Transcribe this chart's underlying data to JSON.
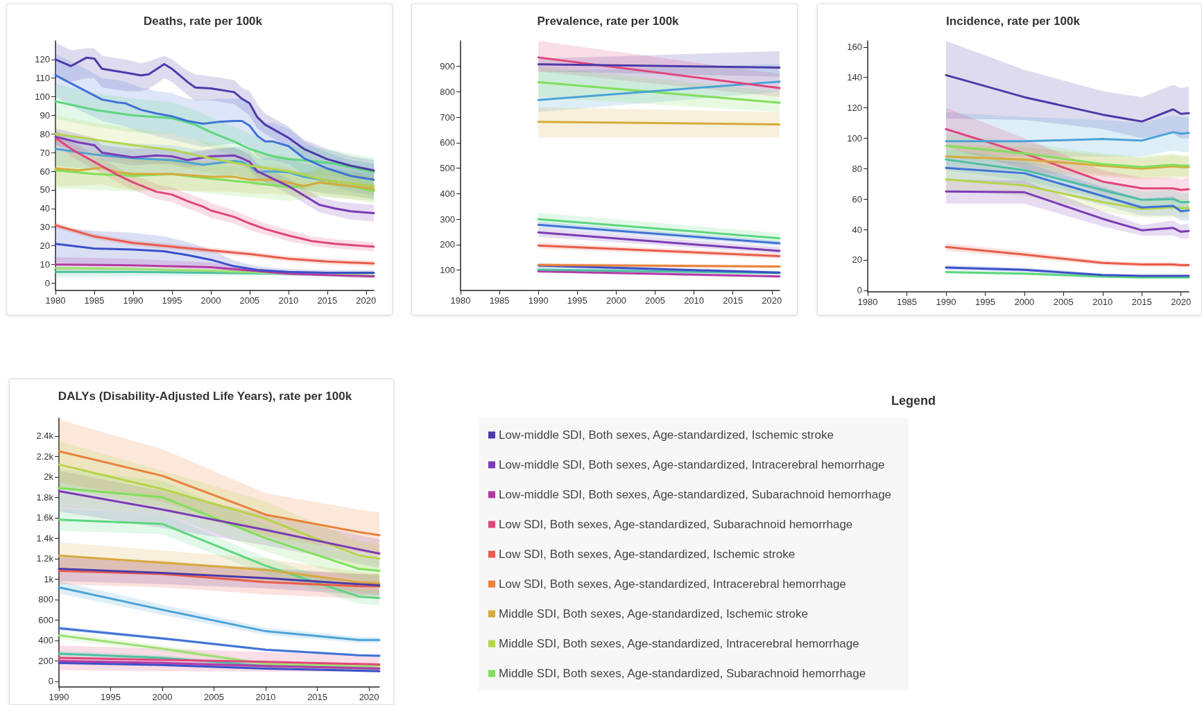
{
  "chart_data": [
    {
      "type": "line",
      "title": "Deaths, rate per 100k",
      "xlim": [
        1980,
        2021
      ],
      "xticks": [
        1980,
        1985,
        1990,
        1995,
        2000,
        2005,
        2010,
        2015,
        2020
      ],
      "ylim": [
        -4,
        130
      ],
      "yticks": [
        0,
        10,
        20,
        30,
        40,
        50,
        60,
        70,
        80,
        90,
        100,
        110,
        120
      ],
      "grid": false,
      "series": [
        {
          "color": "#4b3aa8",
          "x": [
            1980,
            1982,
            1984,
            1985,
            1986,
            1989,
            1991,
            1992,
            1994,
            1995,
            1997,
            1998,
            2000,
            2003,
            2004,
            2005,
            2006,
            2007,
            2010,
            2012,
            2015,
            2018,
            2021
          ],
          "values": [
            120,
            116.5,
            121,
            120.5,
            115,
            113,
            111.5,
            112,
            117.5,
            115,
            108,
            105,
            104.5,
            102.5,
            99,
            96.5,
            89,
            85,
            78,
            72,
            66.5,
            63,
            60.5
          ],
          "lower": [
            111,
            108,
            110,
            110,
            105,
            103,
            103,
            104,
            110,
            108,
            101,
            98,
            98,
            96,
            93,
            90,
            83,
            80,
            73,
            67,
            62,
            58,
            55
          ],
          "upper": [
            129,
            125,
            126,
            126,
            122,
            120,
            118,
            119,
            122,
            120,
            114,
            112,
            111,
            109,
            105,
            103,
            96,
            91,
            84,
            77,
            72,
            68,
            66
          ]
        },
        {
          "color": "#3f72d6",
          "x": [
            1980,
            1983,
            1986,
            1988,
            1989,
            1991,
            1993,
            1995,
            1997,
            1999,
            2001,
            2003,
            2004,
            2005,
            2006,
            2007,
            2008,
            2010,
            2012,
            2015,
            2018,
            2021
          ],
          "values": [
            111.5,
            105,
            98.5,
            97,
            96.5,
            93,
            91,
            89.5,
            87,
            85.5,
            86.5,
            87,
            87,
            84.5,
            79,
            76,
            76,
            73.5,
            67,
            61.5,
            57.5,
            55.5
          ],
          "lower": [
            100,
            93,
            87,
            85,
            84,
            81,
            79,
            77,
            75,
            73,
            74,
            75,
            75,
            73,
            68,
            66,
            66,
            64,
            58,
            53,
            49,
            47
          ],
          "upper": [
            123,
            117,
            110,
            109,
            108,
            105,
            103,
            102,
            99,
            98,
            99,
            99,
            99,
            96,
            90,
            86,
            86,
            83,
            76,
            70,
            66,
            64
          ]
        },
        {
          "color": "#5cd67e",
          "x": [
            1980,
            1985,
            1990,
            1995,
            1998,
            2000,
            2003,
            2005,
            2008,
            2010,
            2013,
            2016,
            2021
          ],
          "values": [
            97.5,
            93,
            90,
            88.5,
            85,
            81,
            76,
            72,
            68,
            66.5,
            65.5,
            64,
            59.5
          ],
          "lower": [
            88,
            84,
            81,
            80,
            77,
            73,
            68,
            64,
            61,
            59,
            58,
            57,
            52
          ],
          "upper": [
            107,
            102,
            99,
            97,
            93,
            89,
            84,
            80,
            75,
            74,
            73,
            71,
            67
          ]
        },
        {
          "color": "#b5d44a",
          "x": [
            1980,
            1985,
            1990,
            1995,
            2000,
            2005,
            2010,
            2015,
            2021
          ],
          "values": [
            80,
            77,
            74,
            71.5,
            67,
            63,
            60,
            55,
            52
          ],
          "lower": [
            70,
            68,
            65,
            63,
            59,
            55,
            52,
            48,
            45
          ],
          "upper": [
            90,
            86,
            83,
            80,
            75,
            71,
            68,
            62,
            59
          ]
        },
        {
          "color": "#7b3bb5",
          "x": [
            1980,
            1983,
            1985,
            1986,
            1990,
            1993,
            1995,
            1997,
            2000,
            2003,
            2004,
            2005,
            2006,
            2008,
            2010,
            2012,
            2014,
            2016,
            2018,
            2021
          ],
          "values": [
            78.5,
            75.5,
            74,
            70,
            67.5,
            68.5,
            68,
            66,
            68,
            68.5,
            67,
            65,
            60,
            56,
            52,
            47,
            42,
            40,
            38.5,
            37.5
          ],
          "lower": [
            74,
            71,
            70,
            66,
            63,
            64,
            64,
            62,
            64,
            64,
            63,
            61,
            56,
            52,
            48,
            43,
            38,
            36,
            34,
            33
          ],
          "upper": [
            83,
            80,
            78,
            74,
            72,
            73,
            72,
            70,
            72,
            73,
            71,
            69,
            64,
            60,
            56,
            51,
            46,
            44,
            43,
            42
          ]
        },
        {
          "color": "#e0457b",
          "x": [
            1980,
            1982,
            1985,
            1988,
            1990,
            1993,
            1995,
            1997,
            1999,
            2000,
            2003,
            2005,
            2007,
            2010,
            2013,
            2016,
            2021
          ],
          "values": [
            78,
            72,
            65,
            58,
            54,
            49,
            47.5,
            44,
            41,
            39,
            35.5,
            32,
            29,
            25.5,
            22.5,
            21,
            19.5
          ],
          "lower": [
            74,
            68,
            61,
            54,
            50,
            45,
            43.5,
            40,
            37,
            35,
            32,
            28.5,
            26,
            22.5,
            20,
            18.5,
            17
          ],
          "upper": [
            82,
            76,
            69,
            62,
            58,
            53,
            51.5,
            48,
            45,
            43,
            39,
            35.5,
            32,
            28.5,
            25,
            23.5,
            22
          ]
        },
        {
          "color": "#4aa3d6",
          "x": [
            1980,
            1985,
            1990,
            1995,
            1999,
            2003,
            2004,
            2005,
            2006,
            2008,
            2010,
            2012,
            2015,
            2018,
            2021
          ],
          "values": [
            72,
            69,
            67,
            66,
            63.5,
            65.5,
            65,
            63,
            59.5,
            60,
            59.5,
            57,
            55,
            53.5,
            52
          ],
          "lower": [
            63,
            61,
            59,
            58,
            56,
            58,
            57,
            55,
            52,
            53,
            52,
            50,
            48,
            47,
            45
          ],
          "upper": [
            81,
            77,
            75,
            74,
            71,
            73,
            73,
            71,
            67,
            67,
            67,
            64,
            62,
            60,
            59
          ]
        },
        {
          "color": "#d6aa3c",
          "x": [
            1980,
            1983,
            1986,
            1988,
            1990,
            1995,
            2000,
            2003,
            2005,
            2008,
            2010,
            2012,
            2014,
            2018,
            2021
          ],
          "values": [
            61.5,
            60.5,
            62,
            59.5,
            58.5,
            58.5,
            57,
            57,
            55.5,
            55.5,
            54,
            52,
            54,
            52,
            50.5
          ],
          "lower": [
            52,
            52,
            53,
            51,
            50,
            50,
            49,
            49,
            48,
            48,
            47,
            46,
            47,
            45,
            44
          ],
          "upper": [
            71,
            70,
            71,
            68,
            67,
            67,
            65,
            65,
            63,
            63,
            62,
            59,
            61,
            59,
            57
          ]
        },
        {
          "color": "#7ee05a",
          "x": [
            1980,
            1985,
            1990,
            1995,
            2000,
            2005,
            2010,
            2012,
            2014,
            2018,
            2021
          ],
          "values": [
            60.5,
            58.5,
            57.5,
            58.5,
            56,
            54,
            51.5,
            52,
            54,
            52,
            49.5
          ],
          "lower": [
            51,
            50,
            49,
            50,
            48,
            46,
            44,
            45,
            46,
            45,
            43
          ],
          "upper": [
            70,
            67,
            66,
            67,
            64,
            62,
            59,
            59,
            62,
            59,
            56
          ]
        },
        {
          "color": "#e85c4a",
          "x": [
            1980,
            1985,
            1990,
            1995,
            2000,
            2005,
            2010,
            2015,
            2021
          ],
          "values": [
            31,
            25,
            21.5,
            19.5,
            17.5,
            15.5,
            13,
            11.5,
            10.5
          ],
          "lower": [
            29.5,
            23.5,
            20,
            18,
            16,
            14,
            11.5,
            10,
            9
          ],
          "upper": [
            32.5,
            26.5,
            23,
            21,
            19,
            17,
            14.5,
            13,
            12
          ]
        },
        {
          "color": "#3a4fc8",
          "x": [
            1980,
            1985,
            1990,
            1994,
            1997,
            2000,
            2003,
            2006,
            2010,
            2015,
            2021
          ],
          "values": [
            21,
            18.5,
            18,
            17,
            15,
            12.5,
            9,
            7,
            6,
            5.5,
            5.5
          ],
          "lower": [
            11,
            10,
            10,
            10,
            9,
            8,
            6,
            5,
            4.5,
            4,
            4
          ],
          "upper": [
            30,
            28,
            27,
            25,
            22,
            18,
            12,
            9,
            7.5,
            7,
            7
          ]
        },
        {
          "color": "#b33aa6",
          "x": [
            1980,
            1990,
            2000,
            2010,
            2021
          ],
          "values": [
            10,
            9.5,
            8.5,
            5,
            3.5
          ],
          "lower": [
            7,
            7,
            6,
            4,
            2.5
          ],
          "upper": [
            14,
            13,
            11,
            6,
            4.5
          ]
        },
        {
          "color": "#9be070",
          "x": [
            1980,
            1990,
            2000,
            2010,
            2021
          ],
          "values": [
            8,
            7.5,
            6.5,
            5,
            4
          ],
          "lower": [
            6,
            5.5,
            5,
            4,
            3
          ],
          "upper": [
            10,
            9.5,
            8,
            6,
            5
          ]
        },
        {
          "color": "#4cc0a0",
          "x": [
            1980,
            1990,
            2000,
            2010,
            2021
          ],
          "values": [
            6,
            6,
            5.5,
            5,
            4
          ],
          "lower": [
            3,
            3.5,
            4,
            4,
            3
          ],
          "upper": [
            8,
            8,
            7,
            6,
            5
          ]
        }
      ]
    },
    {
      "type": "line",
      "title": "Prevalence, rate per 100k",
      "x": [
        1990,
        2021
      ],
      "xlim": [
        1980,
        2021
      ],
      "xticks": [
        1980,
        1985,
        1990,
        1995,
        2000,
        2005,
        2010,
        2015,
        2020
      ],
      "ylim": [
        20,
        1000
      ],
      "yticks": [
        100,
        200,
        300,
        400,
        500,
        600,
        700,
        800,
        900
      ],
      "grid": false,
      "series": [
        {
          "color": "#4b3aa8",
          "values": [
            908,
            895
          ],
          "lower": [
            880,
            860
          ],
          "upper": [
            930,
            960
          ]
        },
        {
          "color": "#e0457b",
          "values": [
            935,
            815
          ],
          "lower": [
            880,
            780
          ],
          "upper": [
            1000,
            870
          ]
        },
        {
          "color": "#4aa3d6",
          "values": [
            768,
            840
          ],
          "lower": [
            720,
            800
          ],
          "upper": [
            880,
            910
          ]
        },
        {
          "color": "#7ee05a",
          "values": [
            838,
            757
          ],
          "lower": [
            780,
            720
          ],
          "upper": [
            900,
            800
          ]
        },
        {
          "color": "#d6aa3c",
          "values": [
            682,
            672
          ],
          "lower": [
            620,
            620
          ],
          "upper": [
            740,
            720
          ]
        },
        {
          "color": "#5cd67e",
          "values": [
            300,
            225
          ],
          "lower": [
            285,
            210
          ],
          "upper": [
            325,
            245
          ]
        },
        {
          "color": "#3f72d6",
          "values": [
            278,
            205
          ],
          "lower": [
            265,
            195
          ],
          "upper": [
            290,
            215
          ]
        },
        {
          "color": "#7b3bb5",
          "values": [
            248,
            175
          ],
          "lower": [
            230,
            165
          ],
          "upper": [
            265,
            190
          ]
        },
        {
          "color": "#e85c4a",
          "values": [
            196,
            155
          ],
          "lower": [
            185,
            145
          ],
          "upper": [
            208,
            165
          ]
        },
        {
          "color": "#e8823a",
          "values": [
            120,
            114
          ],
          "lower": [
            110,
            108
          ],
          "upper": [
            128,
            120
          ]
        },
        {
          "color": "#3a4fc8",
          "values": [
            118,
            90
          ],
          "lower": [
            110,
            84
          ],
          "upper": [
            126,
            96
          ]
        },
        {
          "color": "#4cc0a0",
          "values": [
            102,
            88
          ],
          "lower": [
            95,
            82
          ],
          "upper": [
            110,
            95
          ]
        },
        {
          "color": "#b33aa6",
          "values": [
            95,
            75
          ],
          "lower": [
            90,
            70
          ],
          "upper": [
            100,
            80
          ]
        }
      ]
    },
    {
      "type": "line",
      "title": "Incidence, rate per 100k",
      "x": [
        1990,
        2000,
        2010,
        2015,
        2019,
        2020,
        2021
      ],
      "xlim": [
        1980,
        2021
      ],
      "xticks": [
        1980,
        1985,
        1990,
        1995,
        2000,
        2005,
        2010,
        2015,
        2020
      ],
      "ylim": [
        -1,
        164
      ],
      "yticks": [
        0,
        20,
        40,
        60,
        80,
        100,
        120,
        140,
        160
      ],
      "grid": false,
      "series": [
        {
          "color": "#4b3aa8",
          "values": [
            141.5,
            127,
            115.5,
            111,
            119,
            116,
            116.5
          ],
          "lower": [
            113,
            112,
            106,
            100,
            103,
            100,
            100
          ],
          "upper": [
            164,
            145,
            131,
            127,
            135,
            133,
            134
          ]
        },
        {
          "color": "#4aa3d6",
          "values": [
            98,
            98,
            99.5,
            98.5,
            104,
            103,
            103.5
          ],
          "lower": [
            88,
            88,
            88,
            88,
            92,
            91,
            91
          ],
          "upper": [
            117,
            114,
            112,
            110,
            115,
            114,
            114
          ]
        },
        {
          "color": "#7ee05a",
          "values": [
            95,
            90,
            83,
            81,
            82.5,
            82,
            82
          ],
          "lower": [
            87,
            83,
            76,
            74,
            75,
            75,
            75
          ],
          "upper": [
            103,
            97,
            90,
            88,
            90,
            89,
            89
          ]
        },
        {
          "color": "#d6aa3c",
          "values": [
            88,
            86,
            82,
            80,
            81.5,
            81,
            81
          ],
          "lower": [
            80,
            78,
            75,
            73,
            74,
            74,
            74
          ],
          "upper": [
            96,
            94,
            89,
            87,
            89,
            88,
            88
          ]
        },
        {
          "color": "#e0457b",
          "values": [
            106,
            90,
            71.5,
            67,
            67,
            66,
            66.5
          ],
          "lower": [
            94,
            80,
            64,
            60,
            60,
            59,
            59
          ],
          "upper": [
            120,
            100,
            79,
            74,
            74,
            73,
            74
          ]
        },
        {
          "color": "#4cc0a0",
          "values": [
            86,
            79,
            66,
            59.5,
            60,
            58,
            58
          ],
          "lower": [
            79,
            72,
            60,
            54,
            54,
            52,
            52
          ],
          "upper": [
            93,
            86,
            72,
            65,
            66,
            64,
            64
          ]
        },
        {
          "color": "#3f72d6",
          "values": [
            80.5,
            77,
            62,
            54.5,
            55.5,
            52,
            52.5
          ],
          "lower": [
            73,
            70,
            56,
            49,
            49,
            46,
            46
          ],
          "upper": [
            88,
            84,
            68,
            60,
            62,
            58,
            59
          ]
        },
        {
          "color": "#b5d44a",
          "values": [
            73,
            69,
            58,
            53.5,
            54.5,
            54,
            54
          ],
          "lower": [
            66,
            62,
            52,
            48,
            48,
            48,
            48
          ],
          "upper": [
            80,
            76,
            64,
            59,
            61,
            60,
            60
          ]
        },
        {
          "color": "#7b3bb5",
          "values": [
            65,
            64.5,
            47,
            39.5,
            41,
            38.5,
            39
          ],
          "lower": [
            57,
            57,
            42,
            36,
            36,
            34,
            34
          ],
          "upper": [
            73,
            72,
            52,
            43,
            46,
            43,
            44
          ]
        },
        {
          "color": "#e85c4a",
          "values": [
            28.5,
            23.5,
            18,
            17,
            17,
            16.5,
            16.5
          ],
          "lower": [
            26,
            21.5,
            16.5,
            15.5,
            15.5,
            15,
            15
          ],
          "upper": [
            31,
            25.5,
            19.5,
            18.5,
            18.5,
            18,
            18
          ]
        },
        {
          "color": "#3a4fc8",
          "values": [
            15,
            13.5,
            10,
            9.5,
            9.5,
            9.5,
            9.5
          ],
          "lower": [
            13.5,
            12,
            9,
            8.5,
            8.5,
            8.5,
            8.5
          ],
          "upper": [
            16.5,
            15,
            11,
            10.5,
            10.5,
            10.5,
            10.5
          ]
        },
        {
          "color": "#5cd67e",
          "values": [
            12,
            11,
            9,
            8.5,
            8.5,
            8.5,
            8.5
          ],
          "lower": [
            11,
            10,
            8,
            7.5,
            7.5,
            7.5,
            7.5
          ],
          "upper": [
            13,
            12,
            10,
            9.5,
            9.5,
            9.5,
            9.5
          ]
        }
      ]
    },
    {
      "type": "line",
      "title": "DALYs (Disability-Adjusted Life Years), rate per 100k",
      "x": [
        1990,
        2000,
        2010,
        2019,
        2021
      ],
      "xlim": [
        1990,
        2021
      ],
      "xticks": [
        1990,
        1995,
        2000,
        2005,
        2010,
        2015,
        2020
      ],
      "ylim": [
        -55,
        2575
      ],
      "yticks": [
        0,
        200,
        400,
        600,
        800,
        {
          "value": 1000,
          "label": "1k"
        },
        {
          "value": 1200,
          "label": "1.2k"
        },
        {
          "value": 1400,
          "label": "1.4k"
        },
        {
          "value": 1600,
          "label": "1.6k"
        },
        {
          "value": 1800,
          "label": "1.8k"
        },
        {
          "value": 2000,
          "label": "2k"
        },
        {
          "value": 2200,
          "label": "2.2k"
        },
        {
          "value": 2400,
          "label": "2.4k"
        }
      ],
      "grid": false,
      "legend": "right",
      "legend_title": "Legend",
      "series": [
        {
          "name": "Low-middle SDI, Both sexes, Age-standardized, Ischemic stroke",
          "color": "#4b3aa8",
          "values": [
            1100,
            1060,
            1010,
            950,
            940
          ],
          "lower": [
            980,
            950,
            910,
            850,
            840
          ],
          "upper": [
            1220,
            1170,
            1110,
            1050,
            1040
          ]
        },
        {
          "name": "Low-middle SDI, Both sexes, Age-standardized, Intracerebral hemorrhage",
          "color": "#7b3bb5",
          "values": [
            1860,
            1680,
            1480,
            1290,
            1250
          ],
          "lower": [
            1660,
            1500,
            1330,
            1150,
            1110
          ],
          "upper": [
            2060,
            1860,
            1630,
            1430,
            1390
          ]
        },
        {
          "name": "Low-middle SDI, Both sexes, Age-standardized, Subarachnoid hemorrhage",
          "color": "#b33aa6",
          "values": [
            200,
            180,
            150,
            130,
            125
          ],
          "lower": [
            180,
            160,
            135,
            115,
            110
          ],
          "upper": [
            220,
            200,
            165,
            145,
            140
          ]
        },
        {
          "name": "Low SDI, Both sexes, Age-standardized, Subarachnoid hemorrhage",
          "color": "#e0457b",
          "values": [
            230,
            210,
            190,
            170,
            165
          ],
          "lower": [
            110,
            100,
            95,
            90,
            88
          ],
          "upper": [
            350,
            320,
            285,
            255,
            250
          ]
        },
        {
          "name": "Low SDI, Both sexes, Age-standardized, Ischemic stroke",
          "color": "#e85c4a",
          "values": [
            1080,
            1050,
            970,
            930,
            930
          ],
          "lower": [
            950,
            920,
            850,
            810,
            810
          ],
          "upper": [
            1210,
            1180,
            1090,
            1050,
            1050
          ]
        },
        {
          "name": "Low SDI, Both sexes, Age-standardized, Intracerebral hemorrhage",
          "color": "#e8823a",
          "values": [
            2250,
            2010,
            1630,
            1460,
            1430
          ],
          "lower": [
            1950,
            1760,
            1420,
            1270,
            1230
          ],
          "upper": [
            2560,
            2270,
            1840,
            1680,
            1650
          ]
        },
        {
          "name": "Middle SDI, Both sexes, Age-standardized, Ischemic stroke",
          "color": "#d6aa3c",
          "values": [
            1230,
            1160,
            1090,
            970,
            960
          ],
          "lower": [
            1100,
            1040,
            980,
            870,
            860
          ],
          "upper": [
            1360,
            1280,
            1200,
            1070,
            1060
          ]
        },
        {
          "name": "Middle SDI, Both sexes, Age-standardized, Intracerebral hemorrhage",
          "color": "#b5d44a",
          "values": [
            2120,
            1880,
            1590,
            1230,
            1200
          ],
          "lower": [
            1900,
            1700,
            1420,
            1100,
            1070
          ],
          "upper": [
            2350,
            2060,
            1760,
            1370,
            1340
          ]
        },
        {
          "name": "Middle SDI, Both sexes, Age-standardized, Subarachnoid hemorrhage",
          "color": "#7ee05a",
          "values": [
            1890,
            1800,
            1400,
            1100,
            1080
          ],
          "lower": [
            1700,
            1640,
            1270,
            990,
            970
          ],
          "upper": [
            2080,
            1960,
            1530,
            1210,
            1190
          ]
        },
        {
          "color": "#5cd67e",
          "values": [
            1580,
            1540,
            1130,
            830,
            815
          ],
          "lower": [
            1470,
            1440,
            1050,
            760,
            740
          ],
          "upper": [
            1690,
            1640,
            1210,
            900,
            890
          ]
        },
        {
          "color": "#4aa3d6",
          "values": [
            920,
            700,
            490,
            405,
            405
          ],
          "lower": [
            860,
            650,
            455,
            375,
            375
          ],
          "upper": [
            980,
            750,
            525,
            435,
            435
          ]
        },
        {
          "color": "#3f72d6",
          "values": [
            520,
            420,
            310,
            255,
            250
          ],
          "lower": [
            500,
            405,
            298,
            245,
            240
          ],
          "upper": [
            540,
            435,
            322,
            265,
            260
          ]
        },
        {
          "color": "#9be070",
          "values": [
            450,
            320,
            170,
            150,
            150
          ],
          "lower": [
            410,
            290,
            150,
            132,
            132
          ],
          "upper": [
            490,
            350,
            190,
            168,
            168
          ]
        },
        {
          "color": "#4cc0a0",
          "values": [
            270,
            230,
            150,
            130,
            125
          ],
          "lower": [
            240,
            205,
            130,
            112,
            108
          ],
          "upper": [
            300,
            255,
            170,
            148,
            142
          ]
        },
        {
          "color": "#3a4fc8",
          "values": [
            180,
            160,
            125,
            105,
            100
          ],
          "lower": [
            165,
            147,
            115,
            96,
            92
          ],
          "upper": [
            195,
            173,
            135,
            114,
            108
          ]
        }
      ]
    }
  ]
}
